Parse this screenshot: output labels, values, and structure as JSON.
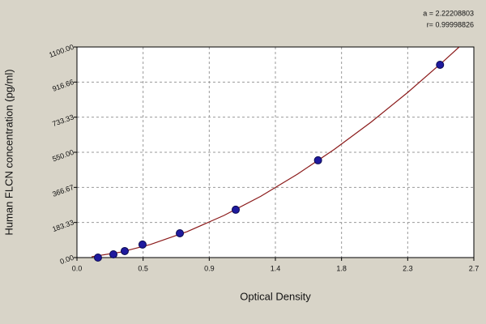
{
  "chart_data": {
    "type": "scatter",
    "xlabel": "Optical Density",
    "ylabel": "Human  FLCN concentration (pg/ml)",
    "annotations": [
      "a = 2.22208803",
      "r= 0.99998826"
    ],
    "xlim": [
      0,
      2.7
    ],
    "ylim": [
      0,
      1100
    ],
    "xticks": [
      {
        "value": 0,
        "label": "0.0"
      },
      {
        "value": 0.45,
        "label": "0.5"
      },
      {
        "value": 0.9,
        "label": "0.9"
      },
      {
        "value": 1.35,
        "label": "1.4"
      },
      {
        "value": 1.8,
        "label": "1.8"
      },
      {
        "value": 2.25,
        "label": "2.3"
      },
      {
        "value": 2.7,
        "label": "2.7"
      }
    ],
    "yticks": [
      {
        "value": 0,
        "label": "0.00"
      },
      {
        "value": 183.33,
        "label": "183.33"
      },
      {
        "value": 366.67,
        "label": "366.67"
      },
      {
        "value": 550,
        "label": "550.00"
      },
      {
        "value": 733.33,
        "label": "733.33"
      },
      {
        "value": 916.66,
        "label": "916.66"
      },
      {
        "value": 1100,
        "label": "1100.00"
      }
    ],
    "grid": true,
    "series": [
      {
        "type": "scatter",
        "color": "#1f1a9e",
        "x": [
          0.143,
          0.248,
          0.325,
          0.446,
          0.7,
          1.08,
          1.64,
          2.47
        ],
        "values": [
          0,
          17,
          34,
          68,
          127,
          250,
          508,
          1007
        ]
      },
      {
        "type": "line",
        "color": "#8b1a1a",
        "x": [
          0.1,
          0.3,
          0.5,
          0.75,
          1.0,
          1.25,
          1.5,
          1.75,
          2.0,
          2.25,
          2.5,
          2.6
        ],
        "values": [
          4.5,
          28.9,
          68.4,
          135.5,
          220,
          320,
          435.6,
          565,
          707,
          862.6,
          1030,
          1100
        ]
      }
    ]
  }
}
